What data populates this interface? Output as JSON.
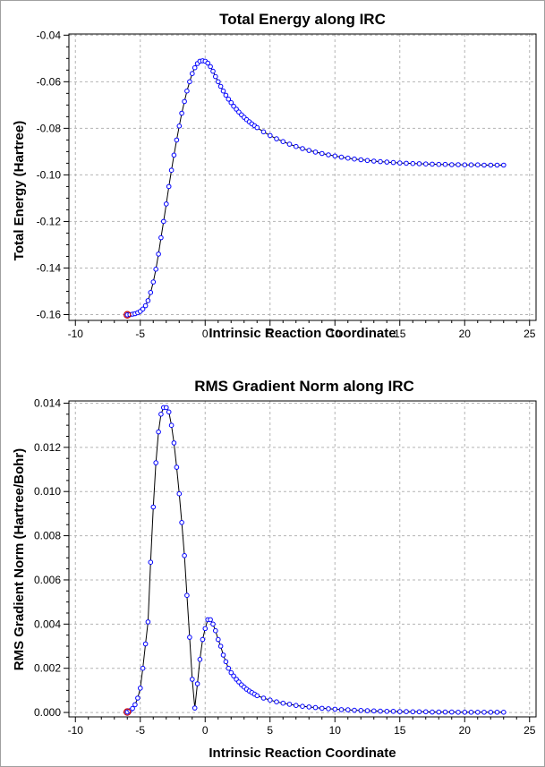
{
  "chart_data": [
    {
      "type": "line",
      "title": "Total Energy along IRC",
      "xlabel": "Intrinsic Reaction Coordinate",
      "ylabel": "Total Energy (Hartree)",
      "xlim": [
        -10.5,
        25.5
      ],
      "ylim": [
        -0.1625,
        -0.0395
      ],
      "xticks": [
        -10,
        -5,
        0,
        5,
        10,
        15,
        20,
        25
      ],
      "yticks": [
        -0.16,
        -0.14,
        -0.12,
        -0.1,
        -0.08,
        -0.06,
        -0.04
      ],
      "ytick_labels": [
        "-0.16",
        "-0.14",
        "-0.12",
        "-0.10",
        "-0.08",
        "-0.06",
        "-0.04"
      ],
      "grid": true,
      "marker_color": "#0000ff",
      "line_color": "#000000",
      "highlight_color": "#cc0000",
      "highlight_point": [
        -6.0,
        -0.1601
      ],
      "series": [
        {
          "x": [
            -6.0,
            -5.8,
            -5.6,
            -5.4,
            -5.2,
            -5.0,
            -4.8,
            -4.6,
            -4.4,
            -4.2,
            -4.0,
            -3.8,
            -3.6,
            -3.4,
            -3.2,
            -3.0,
            -2.8,
            -2.6,
            -2.4,
            -2.2,
            -2.0,
            -1.8,
            -1.6,
            -1.4,
            -1.2,
            -1.0,
            -0.8,
            -0.6,
            -0.4,
            -0.2,
            0.0,
            0.2,
            0.4,
            0.6,
            0.8,
            1.0,
            1.2,
            1.4,
            1.6,
            1.8,
            2.0,
            2.2,
            2.4,
            2.6,
            2.8,
            3.0,
            3.2,
            3.4,
            3.6,
            3.8,
            4.0,
            4.5,
            5.0,
            5.5,
            6.0,
            6.5,
            7.0,
            7.5,
            8.0,
            8.5,
            9.0,
            9.5,
            10.0,
            10.5,
            11.0,
            11.5,
            12.0,
            12.5,
            13.0,
            13.5,
            14.0,
            14.5,
            15.0,
            15.5,
            16.0,
            16.5,
            17.0,
            17.5,
            18.0,
            18.5,
            19.0,
            19.5,
            20.0,
            20.5,
            21.0,
            21.5,
            22.0,
            22.5,
            23.0
          ],
          "y": [
            -0.1601,
            -0.16,
            -0.1598,
            -0.1596,
            -0.1592,
            -0.1586,
            -0.1576,
            -0.1562,
            -0.154,
            -0.1505,
            -0.146,
            -0.1405,
            -0.134,
            -0.127,
            -0.12,
            -0.1125,
            -0.105,
            -0.098,
            -0.0915,
            -0.085,
            -0.079,
            -0.0735,
            -0.0685,
            -0.064,
            -0.06,
            -0.0565,
            -0.054,
            -0.0522,
            -0.0512,
            -0.051,
            -0.0512,
            -0.052,
            -0.0535,
            -0.0555,
            -0.0578,
            -0.06,
            -0.062,
            -0.064,
            -0.0658,
            -0.0675,
            -0.069,
            -0.0705,
            -0.0718,
            -0.073,
            -0.0742,
            -0.0753,
            -0.0763,
            -0.0772,
            -0.0781,
            -0.0789,
            -0.0797,
            -0.0815,
            -0.0831,
            -0.0845,
            -0.0857,
            -0.0868,
            -0.0878,
            -0.0887,
            -0.0895,
            -0.0902,
            -0.0908,
            -0.0914,
            -0.0919,
            -0.0924,
            -0.0928,
            -0.0932,
            -0.0935,
            -0.0938,
            -0.0941,
            -0.0943,
            -0.0945,
            -0.0947,
            -0.0949,
            -0.095,
            -0.0951,
            -0.0952,
            -0.0953,
            -0.0954,
            -0.0955,
            -0.0955,
            -0.0956,
            -0.0956,
            -0.0957,
            -0.0957,
            -0.0957,
            -0.0958,
            -0.0958,
            -0.0958,
            -0.0958
          ]
        }
      ]
    },
    {
      "type": "line",
      "title": "RMS Gradient Norm along IRC",
      "xlabel": "Intrinsic Reaction Coordinate",
      "ylabel": "RMS Gradient Norm (Hartree/Bohr)",
      "xlim": [
        -10.5,
        25.5
      ],
      "ylim": [
        -0.0002,
        0.0141
      ],
      "xticks": [
        -10,
        -5,
        0,
        5,
        10,
        15,
        20,
        25
      ],
      "yticks": [
        0.0,
        0.002,
        0.004,
        0.006,
        0.008,
        0.01,
        0.012,
        0.014
      ],
      "ytick_labels": [
        "0.000",
        "0.002",
        "0.004",
        "0.006",
        "0.008",
        "0.010",
        "0.012",
        "0.014"
      ],
      "grid": true,
      "marker_color": "#0000ff",
      "line_color": "#000000",
      "highlight_color": "#cc0000",
      "highlight_point": [
        -6.0,
        2e-05
      ],
      "series": [
        {
          "x": [
            -6.0,
            -5.8,
            -5.6,
            -5.4,
            -5.2,
            -5.0,
            -4.8,
            -4.6,
            -4.4,
            -4.2,
            -4.0,
            -3.8,
            -3.6,
            -3.4,
            -3.2,
            -3.0,
            -2.8,
            -2.6,
            -2.4,
            -2.2,
            -2.0,
            -1.8,
            -1.6,
            -1.4,
            -1.2,
            -1.0,
            -0.8,
            -0.6,
            -0.4,
            -0.2,
            0.0,
            0.2,
            0.4,
            0.6,
            0.8,
            1.0,
            1.2,
            1.4,
            1.6,
            1.8,
            2.0,
            2.2,
            2.4,
            2.6,
            2.8,
            3.0,
            3.2,
            3.4,
            3.6,
            3.8,
            4.0,
            4.5,
            5.0,
            5.5,
            6.0,
            6.5,
            7.0,
            7.5,
            8.0,
            8.5,
            9.0,
            9.5,
            10.0,
            10.5,
            11.0,
            11.5,
            12.0,
            12.5,
            13.0,
            13.5,
            14.0,
            14.5,
            15.0,
            15.5,
            16.0,
            16.5,
            17.0,
            17.5,
            18.0,
            18.5,
            19.0,
            19.5,
            20.0,
            20.5,
            21.0,
            21.5,
            22.0,
            22.5,
            23.0
          ],
          "y": [
            2e-05,
            8e-05,
            0.00018,
            0.00035,
            0.00065,
            0.0011,
            0.002,
            0.0031,
            0.0041,
            0.0068,
            0.0093,
            0.0113,
            0.0127,
            0.0135,
            0.0138,
            0.0138,
            0.0136,
            0.013,
            0.0122,
            0.0111,
            0.0099,
            0.0086,
            0.0071,
            0.0053,
            0.0034,
            0.0015,
            0.0002,
            0.0013,
            0.0024,
            0.0033,
            0.0038,
            0.0042,
            0.0042,
            0.004,
            0.0037,
            0.0033,
            0.003,
            0.0026,
            0.0023,
            0.002,
            0.0018,
            0.00165,
            0.0015,
            0.00138,
            0.00125,
            0.00115,
            0.00105,
            0.00097,
            0.0009,
            0.00083,
            0.00076,
            0.00065,
            0.00056,
            0.00048,
            0.00042,
            0.00037,
            0.00032,
            0.00028,
            0.00025,
            0.00022,
            0.00019,
            0.00017,
            0.00015,
            0.00013,
            0.00012,
            0.0001,
            9e-05,
            8e-05,
            7e-05,
            6e-05,
            5e-05,
            5e-05,
            4e-05,
            4e-05,
            3e-05,
            3e-05,
            3e-05,
            2e-05,
            2e-05,
            2e-05,
            2e-05,
            1e-05,
            1e-05,
            1e-05,
            1e-05,
            1e-05,
            1e-05,
            1e-05,
            1e-05
          ]
        }
      ]
    }
  ]
}
